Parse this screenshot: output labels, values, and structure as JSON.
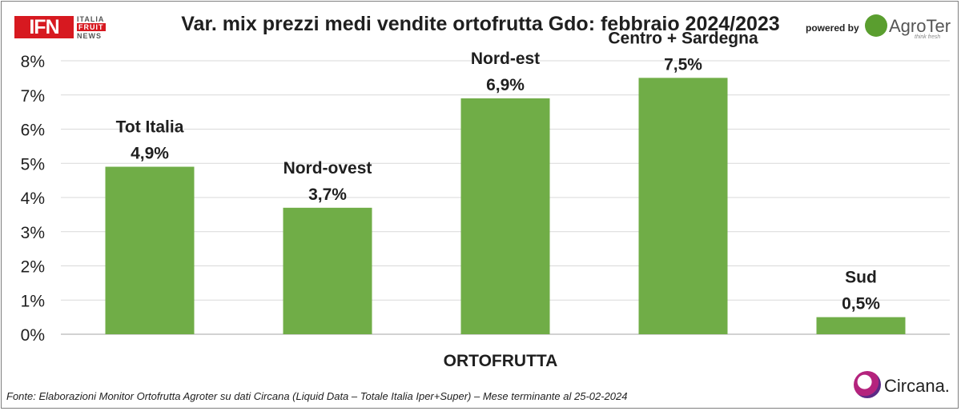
{
  "header": {
    "logo_left": {
      "main": "IFN",
      "line1": "ITALIA",
      "line2": "FRUIT",
      "line3": "NEWS"
    },
    "powered_by": "powered by",
    "logo_right": {
      "word": "AgroTer",
      "tagline": "think fresh"
    }
  },
  "chart_data": {
    "type": "bar",
    "title": "Var. mix prezzi medi vendite ortofrutta Gdo: febbraio 2024/2023",
    "xlabel": "ORTOFRUTTA",
    "ylabel": "",
    "categories": [
      "Tot Italia",
      "Nord-ovest",
      "Nord-est",
      "Centro + Sardegna",
      "Sud"
    ],
    "values": [
      4.9,
      3.7,
      6.9,
      7.5,
      0.5
    ],
    "data_labels": [
      "4,9%",
      "3,7%",
      "6,9%",
      "7,5%",
      "0,5%"
    ],
    "ylim": [
      0,
      8
    ],
    "yticks": [
      "0%",
      "1%",
      "2%",
      "3%",
      "4%",
      "5%",
      "6%",
      "7%",
      "8%"
    ],
    "grid": true,
    "legend": "none",
    "bar_color": "#70ad47"
  },
  "footer": {
    "source": "Fonte: Elaborazioni Monitor Ortofrutta Agroter su dati Circana (Liquid Data – Totale Italia Iper+Super) – Mese terminante al 25-02-2024",
    "logo": "Circana."
  },
  "colors": {
    "accent": "#70ad47",
    "brand_red": "#d71920"
  }
}
